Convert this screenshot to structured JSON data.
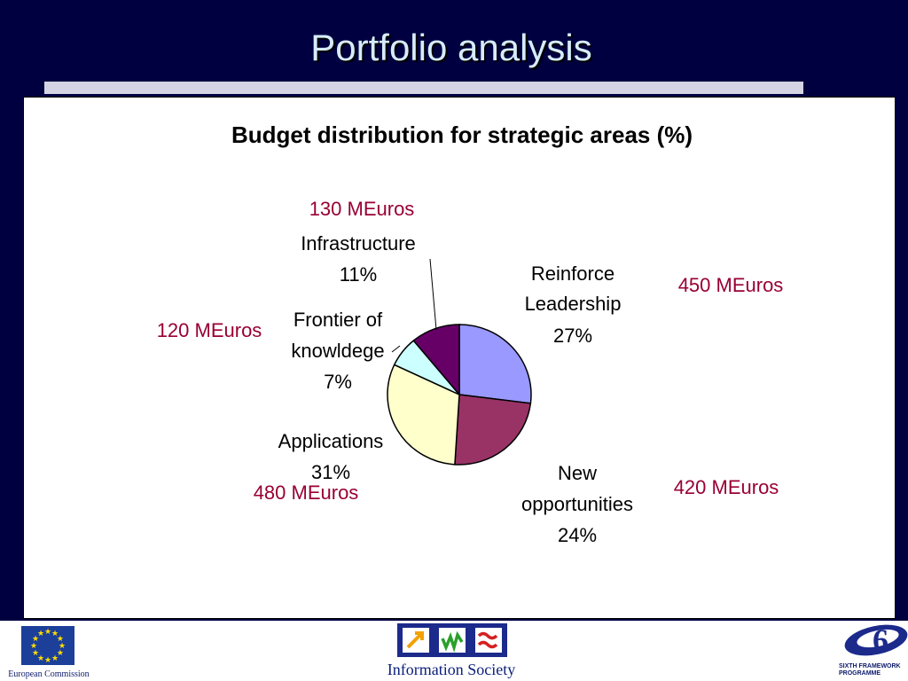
{
  "slide": {
    "title": "Portfolio analysis"
  },
  "chart_data": {
    "type": "pie",
    "title": "Budget distribution for strategic areas (%)",
    "slices": [
      {
        "name": "Reinforce Leadership",
        "label_lines": [
          "Reinforce",
          "Leadership"
        ],
        "value": 27,
        "value_label": "27%",
        "amount": "450 MEuros",
        "color": "#9999ff"
      },
      {
        "name": "New opportunities",
        "label_lines": [
          "New",
          "opportunities"
        ],
        "value": 24,
        "value_label": "24%",
        "amount": "420 MEuros",
        "color": "#993366"
      },
      {
        "name": "Applications",
        "label_lines": [
          "Applications"
        ],
        "value": 31,
        "value_label": "31%",
        "amount": "480 MEuros",
        "color": "#ffffcc"
      },
      {
        "name": "Frontier of knowldege",
        "label_lines": [
          "Frontier of",
          "knowldege"
        ],
        "value": 7,
        "value_label": "7%",
        "amount": "120 MEuros",
        "color": "#ccffff"
      },
      {
        "name": "Infrastructure",
        "label_lines": [
          "Infrastructure"
        ],
        "value": 11,
        "value_label": "11%",
        "amount": "130 MEuros",
        "color": "#660066"
      }
    ],
    "amount_color": "#990033",
    "start_angle_deg": 0,
    "direction": "clockwise",
    "legend": "none"
  },
  "footer": {
    "logo_left": {
      "text": "European Commission",
      "icon": "eu-flag-icon"
    },
    "logo_center": {
      "text": "Information Society",
      "icon": "information-society-icon"
    },
    "logo_right": {
      "text_lines": [
        "SIXTH FRAMEWORK",
        "PROGRAMME"
      ],
      "icon": "sixth-framework-icon"
    }
  }
}
